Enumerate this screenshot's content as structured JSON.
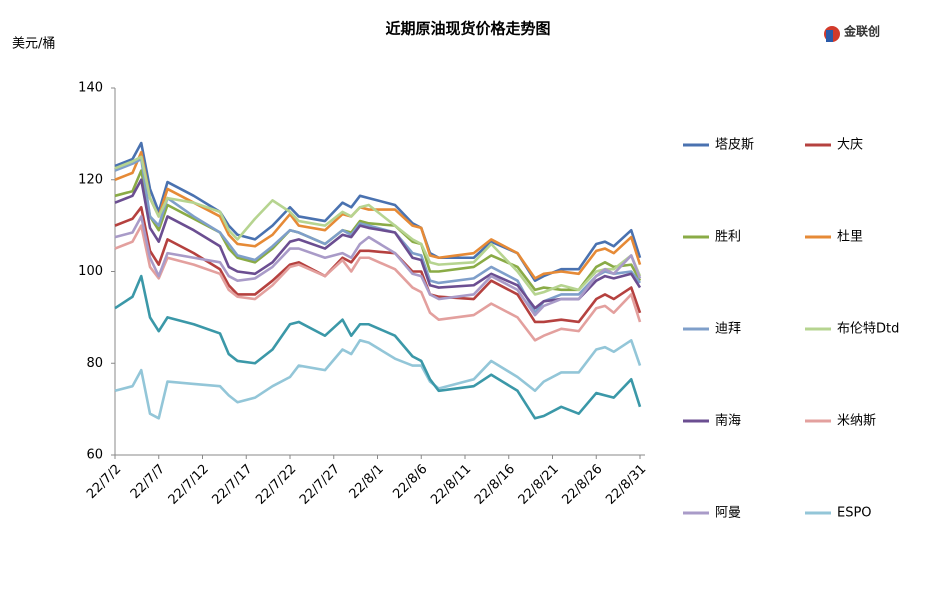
{
  "chart_data": {
    "type": "line",
    "title": "近期原油现货价格走势图",
    "y_label": "美元/桶",
    "logo_text": "金联创",
    "x": [
      "22/7/2",
      "22/7/4",
      "22/7/5",
      "22/7/6",
      "22/7/7",
      "22/7/8",
      "22/7/11",
      "22/7/14",
      "22/7/15",
      "22/7/16",
      "22/7/18",
      "22/7/20",
      "22/7/22",
      "22/7/23",
      "22/7/26",
      "22/7/28",
      "22/7/29",
      "22/7/30",
      "22/7/31",
      "22/8/3",
      "22/8/5",
      "22/8/6",
      "22/8/7",
      "22/8/8",
      "22/8/12",
      "22/8/14",
      "22/8/17",
      "22/8/19",
      "22/8/20",
      "22/8/22",
      "22/8/24",
      "22/8/26",
      "22/8/27",
      "22/8/28",
      "22/8/30",
      "22/8/31"
    ],
    "xlim": [
      "22/7/2",
      "22/8/31"
    ],
    "xticks": [
      "22/7/2",
      "22/7/7",
      "22/7/12",
      "22/7/17",
      "22/7/22",
      "22/7/27",
      "22/8/1",
      "22/8/6",
      "22/8/11",
      "22/8/16",
      "22/8/21",
      "22/8/26",
      "22/8/31"
    ],
    "ylim": [
      60,
      140
    ],
    "yticks": [
      60,
      80,
      100,
      120,
      140
    ],
    "grid": false,
    "legend": "right",
    "series": [
      {
        "name": "塔皮斯",
        "color": "#4a72b0",
        "values": [
          123,
          124.5,
          128,
          118,
          113,
          119.5,
          116.5,
          113,
          110,
          108,
          107,
          110,
          114,
          112,
          111,
          115,
          114,
          116.5,
          116,
          114.5,
          110.5,
          109.5,
          104,
          103,
          103,
          106.5,
          104,
          98,
          99,
          100.5,
          100.5,
          106,
          106.5,
          105.5,
          109,
          103
        ]
      },
      {
        "name": "大庆",
        "color": "#b5413f",
        "values": [
          110,
          111.5,
          114,
          104.5,
          101.5,
          107,
          104,
          100.5,
          97,
          95,
          95,
          98,
          101.5,
          102,
          99,
          103,
          102,
          104.5,
          104.5,
          104,
          100,
          100,
          95,
          94.5,
          94,
          98,
          95,
          89,
          89,
          89.5,
          89,
          94,
          95,
          94,
          96.5,
          91
        ]
      },
      {
        "name": "胜利",
        "color": "#8aab46",
        "values": [
          116.5,
          117.5,
          122,
          112,
          109,
          114.5,
          111.5,
          108.5,
          105,
          103,
          102,
          105,
          109,
          108.5,
          106,
          109,
          108.5,
          111,
          110.5,
          110,
          106.5,
          106,
          100,
          100,
          101,
          103.5,
          101,
          96,
          96.5,
          96,
          96,
          101,
          102,
          101,
          101.5,
          98
        ]
      },
      {
        "name": "杜里",
        "color": "#e68a36",
        "values": [
          120,
          121.5,
          126,
          116,
          112,
          118,
          115,
          112,
          108,
          106,
          105.5,
          108,
          112.5,
          110,
          109,
          112.5,
          112,
          114,
          113.5,
          113.5,
          110,
          109.5,
          103.5,
          103,
          104,
          107,
          104,
          98.5,
          99.5,
          100,
          99.5,
          104.5,
          105,
          104,
          107.5,
          101.5
        ]
      },
      {
        "name": "迪拜",
        "color": "#7f9fca",
        "values": [
          122,
          123.5,
          124.5,
          112,
          110,
          116,
          112,
          108.5,
          106,
          103.5,
          102.5,
          105.5,
          109,
          108.5,
          106,
          109,
          108,
          110.5,
          110,
          108.5,
          104,
          103.5,
          98,
          97.5,
          98.5,
          101,
          98,
          91,
          93.5,
          95,
          95,
          99,
          100,
          99.5,
          100,
          97.5
        ]
      },
      {
        "name": "布伦特Dtd",
        "color": "#b6d490",
        "values": [
          122.5,
          124,
          125,
          116,
          112,
          116,
          115,
          113,
          109,
          107,
          111.5,
          115.5,
          113,
          111,
          110,
          113,
          112,
          114,
          114.5,
          110,
          107,
          106,
          102,
          101.5,
          102,
          106,
          100,
          95,
          95.5,
          97,
          96,
          100,
          100.5,
          100.5,
          103.5,
          99
        ]
      },
      {
        "name": "南海",
        "color": "#6b4e91",
        "values": [
          115,
          116.5,
          120,
          109.5,
          106.5,
          112,
          109,
          105.5,
          101,
          100,
          99.5,
          102,
          106.5,
          107,
          105,
          108,
          107.5,
          110,
          109.5,
          108.5,
          103,
          102.5,
          97,
          96.5,
          97,
          99.5,
          97,
          92,
          93.5,
          94,
          94,
          98,
          99,
          98.5,
          99.5,
          96.5
        ]
      },
      {
        "name": "米纳斯",
        "color": "#e3a09e",
        "values": [
          105,
          106.5,
          110,
          101,
          98.5,
          103,
          101.5,
          99.5,
          96,
          94.5,
          94,
          97,
          101,
          101.5,
          99,
          102.5,
          100,
          103,
          103,
          100.5,
          96.5,
          95.5,
          91,
          89.5,
          90.5,
          93,
          90,
          85,
          86,
          87.5,
          87,
          92,
          92.5,
          91,
          95,
          89
        ]
      },
      {
        "name": "阿曼",
        "color": "#a99bc8",
        "values": [
          107.5,
          108.5,
          112,
          103,
          99,
          104,
          103,
          102,
          99,
          98,
          98.5,
          101,
          105,
          105,
          103,
          104,
          103,
          106,
          107.5,
          104,
          99.5,
          99,
          95,
          94,
          95,
          99,
          96,
          90.5,
          92.5,
          94,
          94,
          99,
          100.5,
          99.5,
          103.5,
          98.5
        ]
      },
      {
        "name": "ESPO",
        "color": "#93c6d8",
        "values": [
          74,
          75,
          78.5,
          69,
          68,
          76,
          75.5,
          75,
          73,
          71.5,
          72.5,
          75,
          77,
          79.5,
          78.5,
          83,
          82,
          85,
          84.5,
          81,
          79.5,
          79.5,
          76,
          74.5,
          76.5,
          80.5,
          77,
          74,
          76,
          78,
          78,
          83,
          83.5,
          82.5,
          85,
          79.5
        ]
      },
      {
        "color": "#3b98a8",
        "values": [
          92,
          94.5,
          99,
          90,
          87,
          90,
          88.5,
          86.5,
          82,
          80.5,
          80,
          83,
          88.5,
          89,
          86,
          89.5,
          86,
          88.5,
          88.5,
          86,
          81.5,
          80.5,
          76.5,
          74,
          75,
          77.5,
          74,
          68,
          68.5,
          70.5,
          69,
          73.5,
          73,
          72.5,
          76.5,
          70.5
        ]
      }
    ]
  }
}
